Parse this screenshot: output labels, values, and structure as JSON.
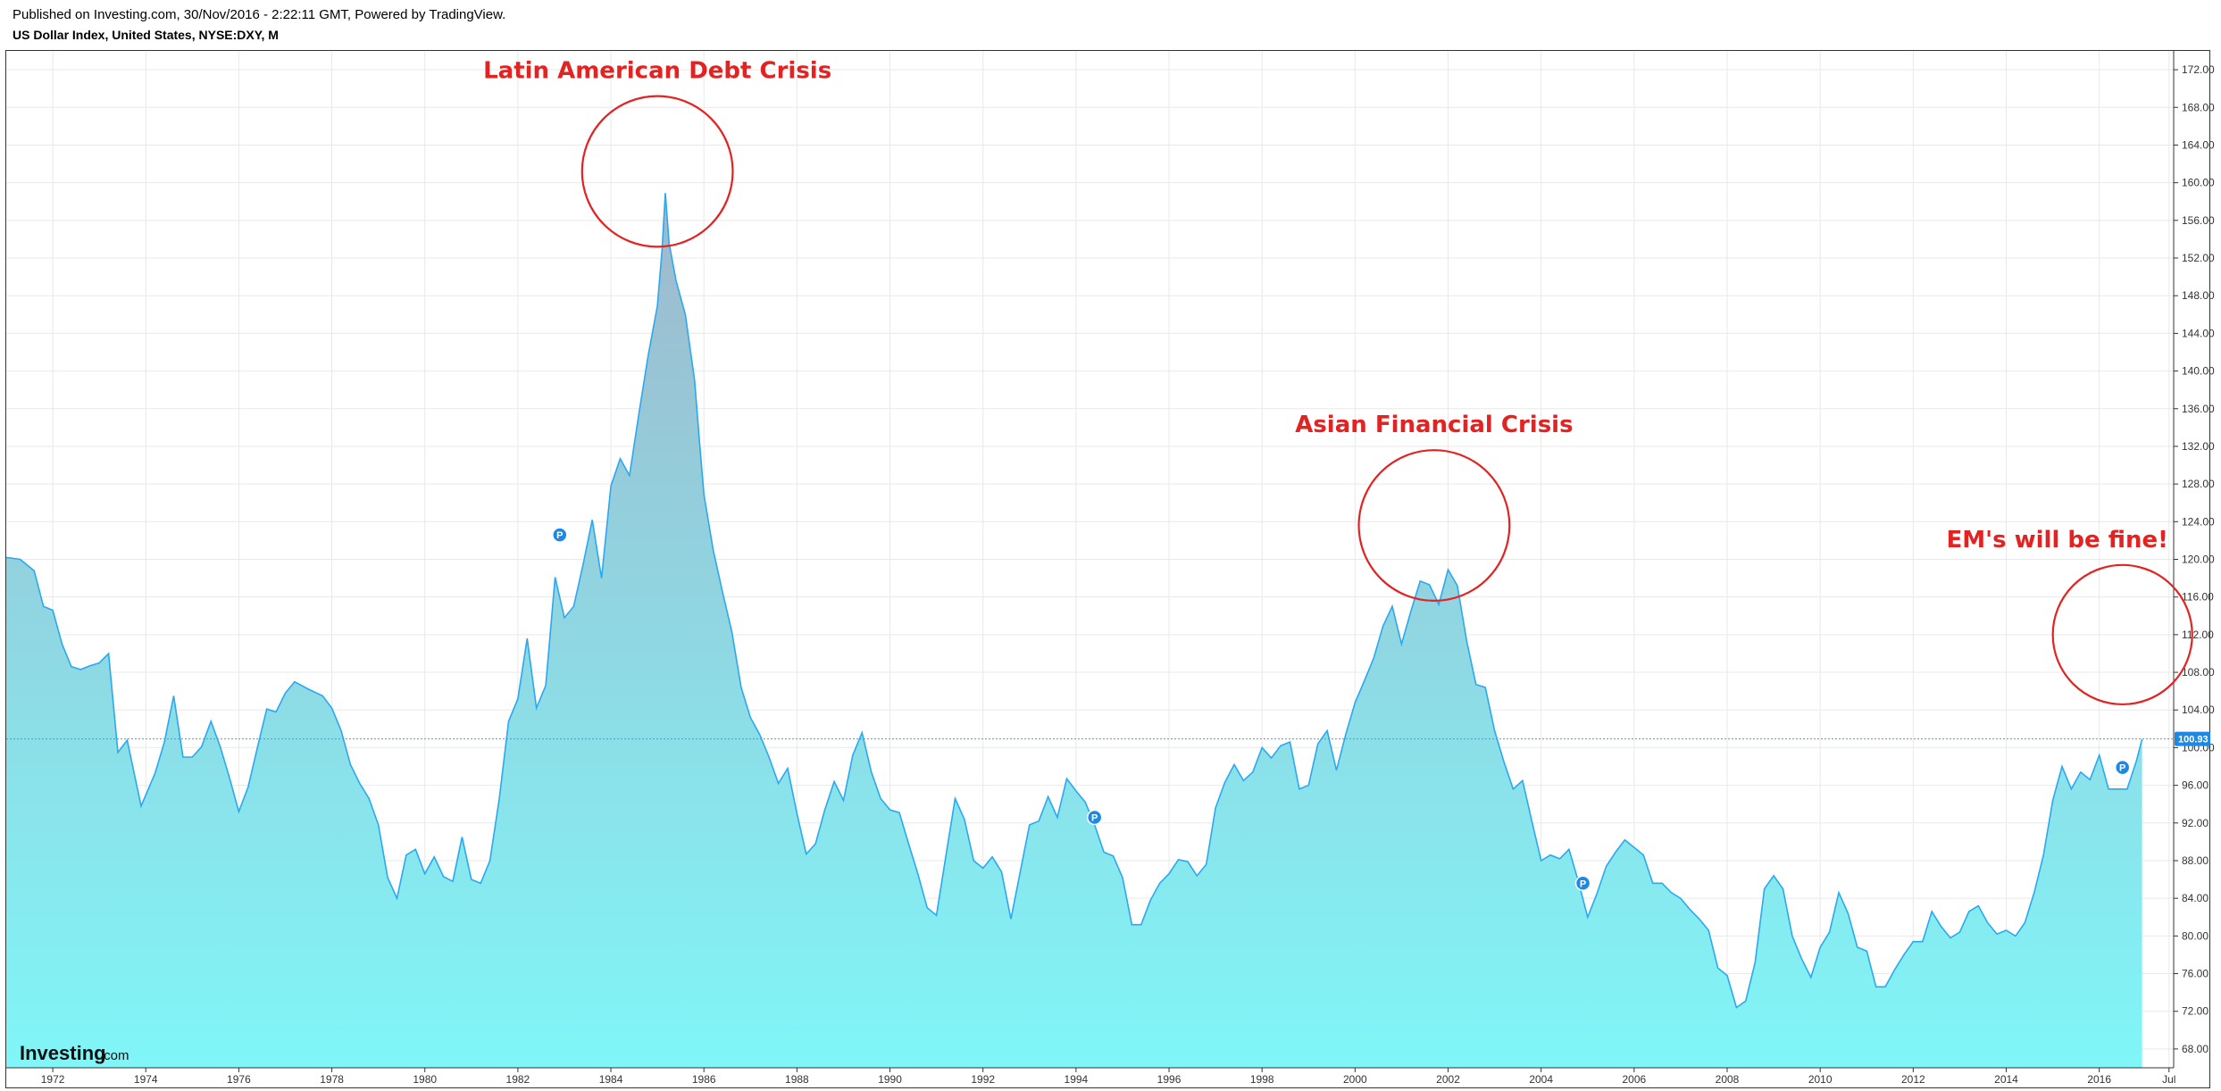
{
  "header": {
    "published": "Published on Investing.com, 30/Nov/2016 - 2:22:11 GMT, Powered by TradingView.",
    "symbol": "US Dollar Index, United States, NYSE:DXY, M"
  },
  "logo": {
    "main": "Investing",
    "suffix": ".com"
  },
  "colors": {
    "line": "#2aa8f2",
    "fill_top": "#9fb8cc",
    "fill_bottom": "#80f6f8",
    "annotation": "#e32222",
    "price_label": "#1e88e5"
  },
  "chart_data": {
    "type": "area",
    "frequency": "monthly",
    "ylim": [
      66,
      174
    ],
    "xlim": [
      1971.0,
      2017.6
    ],
    "y_ticks": [
      "68.00",
      "72.00",
      "76.00",
      "80.00",
      "84.00",
      "88.00",
      "92.00",
      "96.00",
      "100.00",
      "104.00",
      "108.00",
      "112.00",
      "116.00",
      "120.00",
      "124.00",
      "128.00",
      "132.00",
      "136.00",
      "140.00",
      "144.00",
      "148.00",
      "152.00",
      "156.00",
      "160.00",
      "164.00",
      "168.00",
      "172.00"
    ],
    "x_ticks": [
      {
        "v": 1972,
        "label": "1972"
      },
      {
        "v": 1974,
        "label": "1974"
      },
      {
        "v": 1976,
        "label": "1976"
      },
      {
        "v": 1978,
        "label": "1978"
      },
      {
        "v": 1980,
        "label": "1980"
      },
      {
        "v": 1982,
        "label": "1982"
      },
      {
        "v": 1984,
        "label": "1984"
      },
      {
        "v": 1986,
        "label": "1986"
      },
      {
        "v": 1988,
        "label": "1988"
      },
      {
        "v": 1990,
        "label": "1990"
      },
      {
        "v": 1992,
        "label": "1992"
      },
      {
        "v": 1994,
        "label": "1994"
      },
      {
        "v": 1996,
        "label": "1996"
      },
      {
        "v": 1998,
        "label": "1998"
      },
      {
        "v": 2000,
        "label": "2000"
      },
      {
        "v": 2002,
        "label": "2002"
      },
      {
        "v": 2004,
        "label": "2004"
      },
      {
        "v": 2006,
        "label": "2006"
      },
      {
        "v": 2008,
        "label": "2008"
      },
      {
        "v": 2010,
        "label": "2010"
      },
      {
        "v": 2012,
        "label": "2012"
      },
      {
        "v": 2014,
        "label": "2014"
      },
      {
        "v": 2016,
        "label": "2016"
      },
      {
        "v": 2017.5,
        "label": "Jul"
      }
    ],
    "last_price": 100.93,
    "last_price_label": "100.93",
    "series": [
      {
        "points": [
          [
            1971.0,
            120.2
          ],
          [
            1971.3,
            120.0
          ],
          [
            1971.6,
            118.8
          ],
          [
            1971.8,
            115.0
          ],
          [
            1972.0,
            114.6
          ],
          [
            1972.2,
            111.0
          ],
          [
            1972.4,
            108.6
          ],
          [
            1972.6,
            108.3
          ],
          [
            1972.8,
            108.7
          ],
          [
            1973.0,
            109.0
          ],
          [
            1973.2,
            110.0
          ],
          [
            1973.4,
            99.5
          ],
          [
            1973.6,
            100.8
          ],
          [
            1973.9,
            93.8
          ],
          [
            1974.2,
            97.3
          ],
          [
            1974.4,
            100.6
          ],
          [
            1974.6,
            105.5
          ],
          [
            1974.8,
            99.0
          ],
          [
            1975.0,
            99.0
          ],
          [
            1975.2,
            100.1
          ],
          [
            1975.4,
            102.8
          ],
          [
            1975.6,
            100.1
          ],
          [
            1975.8,
            96.8
          ],
          [
            1976.0,
            93.2
          ],
          [
            1976.2,
            95.8
          ],
          [
            1976.4,
            100.0
          ],
          [
            1976.6,
            104.1
          ],
          [
            1976.8,
            103.8
          ],
          [
            1977.0,
            105.8
          ],
          [
            1977.2,
            107.0
          ],
          [
            1977.5,
            106.2
          ],
          [
            1977.8,
            105.5
          ],
          [
            1978.0,
            104.2
          ],
          [
            1978.2,
            101.8
          ],
          [
            1978.4,
            98.2
          ],
          [
            1978.6,
            96.2
          ],
          [
            1978.8,
            94.6
          ],
          [
            1979.0,
            91.8
          ],
          [
            1979.2,
            86.2
          ],
          [
            1979.4,
            84.0
          ],
          [
            1979.6,
            88.6
          ],
          [
            1979.8,
            89.2
          ],
          [
            1980.0,
            86.6
          ],
          [
            1980.2,
            88.4
          ],
          [
            1980.4,
            86.3
          ],
          [
            1980.6,
            85.8
          ],
          [
            1980.8,
            90.5
          ],
          [
            1981.0,
            86.0
          ],
          [
            1981.2,
            85.6
          ],
          [
            1981.4,
            88.0
          ],
          [
            1981.6,
            94.6
          ],
          [
            1981.8,
            102.8
          ],
          [
            1982.0,
            105.2
          ],
          [
            1982.2,
            111.6
          ],
          [
            1982.4,
            104.2
          ],
          [
            1982.6,
            106.6
          ],
          [
            1982.8,
            118.1
          ],
          [
            1983.0,
            113.8
          ],
          [
            1983.2,
            115.0
          ],
          [
            1983.4,
            119.4
          ],
          [
            1983.6,
            124.2
          ],
          [
            1983.8,
            118.0
          ],
          [
            1984.0,
            127.8
          ],
          [
            1984.2,
            130.7
          ],
          [
            1984.4,
            128.9
          ],
          [
            1984.6,
            135.4
          ],
          [
            1984.8,
            141.6
          ],
          [
            1985.0,
            146.9
          ],
          [
            1985.1,
            152.8
          ],
          [
            1985.17,
            158.9
          ],
          [
            1985.25,
            153.6
          ],
          [
            1985.4,
            149.6
          ],
          [
            1985.6,
            146.0
          ],
          [
            1985.8,
            139.0
          ],
          [
            1985.9,
            132.8
          ],
          [
            1986.0,
            126.9
          ],
          [
            1986.2,
            121.0
          ],
          [
            1986.4,
            116.5
          ],
          [
            1986.6,
            112.3
          ],
          [
            1986.8,
            106.4
          ],
          [
            1987.0,
            103.2
          ],
          [
            1987.2,
            101.4
          ],
          [
            1987.4,
            99.0
          ],
          [
            1987.6,
            96.2
          ],
          [
            1987.8,
            97.8
          ],
          [
            1988.0,
            93.0
          ],
          [
            1988.2,
            88.7
          ],
          [
            1988.4,
            89.8
          ],
          [
            1988.6,
            93.4
          ],
          [
            1988.8,
            96.4
          ],
          [
            1989.0,
            94.4
          ],
          [
            1989.2,
            99.2
          ],
          [
            1989.4,
            101.6
          ],
          [
            1989.6,
            97.4
          ],
          [
            1989.8,
            94.6
          ],
          [
            1990.0,
            93.4
          ],
          [
            1990.2,
            93.1
          ],
          [
            1990.4,
            89.8
          ],
          [
            1990.6,
            86.6
          ],
          [
            1990.8,
            83.0
          ],
          [
            1991.0,
            82.2
          ],
          [
            1991.2,
            88.4
          ],
          [
            1991.4,
            94.6
          ],
          [
            1991.6,
            92.4
          ],
          [
            1991.8,
            88.0
          ],
          [
            1992.0,
            87.2
          ],
          [
            1992.2,
            88.4
          ],
          [
            1992.4,
            86.8
          ],
          [
            1992.6,
            81.8
          ],
          [
            1992.8,
            86.8
          ],
          [
            1993.0,
            91.8
          ],
          [
            1993.2,
            92.2
          ],
          [
            1993.4,
            94.8
          ],
          [
            1993.6,
            92.6
          ],
          [
            1993.8,
            96.7
          ],
          [
            1994.0,
            95.4
          ],
          [
            1994.2,
            94.2
          ],
          [
            1994.4,
            91.8
          ],
          [
            1994.6,
            88.9
          ],
          [
            1994.8,
            88.5
          ],
          [
            1995.0,
            86.2
          ],
          [
            1995.2,
            81.2
          ],
          [
            1995.4,
            81.2
          ],
          [
            1995.6,
            83.8
          ],
          [
            1995.8,
            85.6
          ],
          [
            1996.0,
            86.6
          ],
          [
            1996.2,
            88.1
          ],
          [
            1996.4,
            87.9
          ],
          [
            1996.6,
            86.4
          ],
          [
            1996.8,
            87.6
          ],
          [
            1997.0,
            93.6
          ],
          [
            1997.2,
            96.3
          ],
          [
            1997.4,
            98.2
          ],
          [
            1997.6,
            96.5
          ],
          [
            1997.8,
            97.4
          ],
          [
            1998.0,
            100.0
          ],
          [
            1998.2,
            98.9
          ],
          [
            1998.4,
            100.2
          ],
          [
            1998.6,
            100.6
          ],
          [
            1998.8,
            95.6
          ],
          [
            1999.0,
            96.0
          ],
          [
            1999.2,
            100.4
          ],
          [
            1999.4,
            101.8
          ],
          [
            1999.6,
            97.6
          ],
          [
            1999.8,
            101.4
          ],
          [
            2000.0,
            104.8
          ],
          [
            2000.2,
            107.1
          ],
          [
            2000.4,
            109.5
          ],
          [
            2000.6,
            112.9
          ],
          [
            2000.8,
            115.0
          ],
          [
            2001.0,
            111.0
          ],
          [
            2001.2,
            114.5
          ],
          [
            2001.4,
            117.7
          ],
          [
            2001.6,
            117.3
          ],
          [
            2001.8,
            115.2
          ],
          [
            2002.0,
            118.9
          ],
          [
            2002.2,
            117.2
          ],
          [
            2002.4,
            111.3
          ],
          [
            2002.6,
            106.7
          ],
          [
            2002.8,
            106.4
          ],
          [
            2003.0,
            101.8
          ],
          [
            2003.2,
            98.5
          ],
          [
            2003.4,
            95.6
          ],
          [
            2003.6,
            96.5
          ],
          [
            2003.8,
            92.2
          ],
          [
            2004.0,
            88.0
          ],
          [
            2004.2,
            88.6
          ],
          [
            2004.4,
            88.2
          ],
          [
            2004.6,
            89.2
          ],
          [
            2004.8,
            85.8
          ],
          [
            2005.0,
            82.0
          ],
          [
            2005.2,
            84.5
          ],
          [
            2005.4,
            87.4
          ],
          [
            2005.6,
            88.9
          ],
          [
            2005.8,
            90.2
          ],
          [
            2006.0,
            89.4
          ],
          [
            2006.2,
            88.6
          ],
          [
            2006.4,
            85.6
          ],
          [
            2006.6,
            85.6
          ],
          [
            2006.8,
            84.6
          ],
          [
            2007.0,
            84.0
          ],
          [
            2007.2,
            82.8
          ],
          [
            2007.4,
            81.8
          ],
          [
            2007.6,
            80.6
          ],
          [
            2007.8,
            76.6
          ],
          [
            2008.0,
            75.8
          ],
          [
            2008.2,
            72.4
          ],
          [
            2008.4,
            73.1
          ],
          [
            2008.6,
            77.2
          ],
          [
            2008.8,
            85.0
          ],
          [
            2009.0,
            86.4
          ],
          [
            2009.2,
            85.0
          ],
          [
            2009.4,
            80.0
          ],
          [
            2009.6,
            77.6
          ],
          [
            2009.8,
            75.6
          ],
          [
            2010.0,
            78.8
          ],
          [
            2010.2,
            80.4
          ],
          [
            2010.4,
            84.6
          ],
          [
            2010.6,
            82.4
          ],
          [
            2010.8,
            78.8
          ],
          [
            2011.0,
            78.4
          ],
          [
            2011.2,
            74.6
          ],
          [
            2011.4,
            74.6
          ],
          [
            2011.6,
            76.4
          ],
          [
            2011.8,
            78.0
          ],
          [
            2012.0,
            79.4
          ],
          [
            2012.2,
            79.4
          ],
          [
            2012.4,
            82.6
          ],
          [
            2012.6,
            81.0
          ],
          [
            2012.8,
            79.8
          ],
          [
            2013.0,
            80.4
          ],
          [
            2013.2,
            82.6
          ],
          [
            2013.4,
            83.2
          ],
          [
            2013.6,
            81.4
          ],
          [
            2013.8,
            80.2
          ],
          [
            2014.0,
            80.6
          ],
          [
            2014.2,
            80.0
          ],
          [
            2014.4,
            81.4
          ],
          [
            2014.6,
            84.6
          ],
          [
            2014.8,
            88.6
          ],
          [
            2015.0,
            94.4
          ],
          [
            2015.2,
            98.0
          ],
          [
            2015.4,
            95.6
          ],
          [
            2015.6,
            97.4
          ],
          [
            2015.8,
            96.6
          ],
          [
            2016.0,
            99.2
          ],
          [
            2016.2,
            95.6
          ],
          [
            2016.4,
            95.6
          ],
          [
            2016.6,
            95.6
          ],
          [
            2016.8,
            98.6
          ],
          [
            2016.92,
            100.9
          ]
        ]
      }
    ],
    "annotations": [
      {
        "label": "Latin American Debt Crisis",
        "x": 1985.0,
        "y": 161.2,
        "ry": 8.0
      },
      {
        "label": "Asian Financial Crisis",
        "x": 2001.7,
        "y": 123.6,
        "ry": 8.0
      },
      {
        "label": "EM's will be fine!",
        "x": 2016.5,
        "y": 112.0,
        "ry": 7.4
      }
    ],
    "event_markers": [
      {
        "label": "P",
        "x": 1982.9,
        "y": 122.6
      },
      {
        "label": "P",
        "x": 1994.4,
        "y": 92.6
      },
      {
        "label": "P",
        "x": 2004.9,
        "y": 85.6
      },
      {
        "label": "P",
        "x": 2016.5,
        "y": 97.9
      }
    ]
  }
}
